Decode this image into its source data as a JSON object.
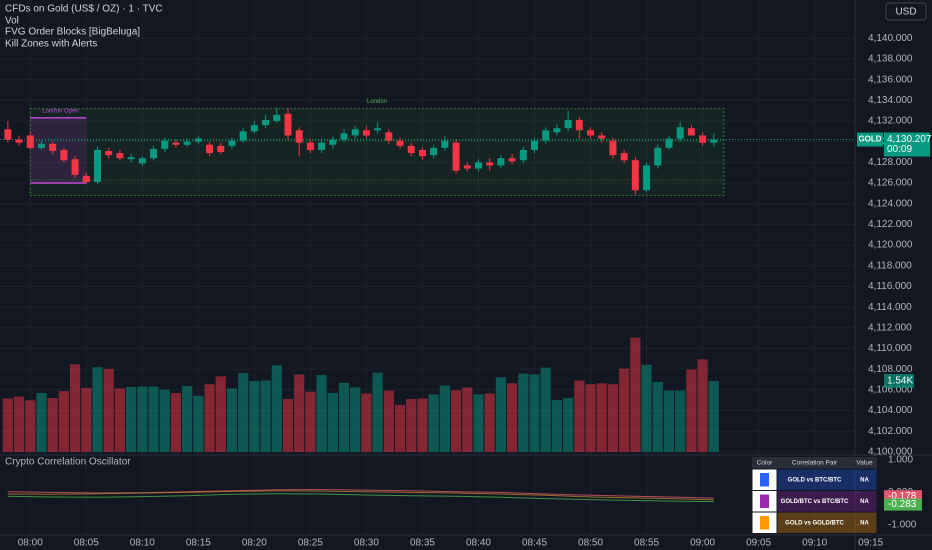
{
  "header": {
    "symbol": "CFDs on Gold (US$ / OZ) · 1 · TVC",
    "indicators": [
      "Vol",
      "FVG Order Blocks [BigBeluga]",
      "Kill Zones with Alerts"
    ],
    "currency": "USD"
  },
  "chart_data": [
    {
      "type": "candlestick",
      "open": [
        4131.2,
        4130.2,
        4130.6,
        4129.4,
        4129.8,
        4129.2,
        4128.3,
        4126.7,
        4126.1,
        4129.1,
        4128.9,
        4128.3,
        4127.9,
        4128.4,
        4129.3,
        4129.9,
        4129.7,
        4130.0,
        4129.7,
        4129.6,
        4129.6,
        4130.1,
        4131.0,
        4131.6,
        4132.0,
        4132.7,
        4131.1,
        4129.9,
        4129.2,
        4129.7,
        4130.2,
        4130.6,
        4131.1,
        4131.1,
        4130.9,
        4130.1,
        4129.6,
        4129.2,
        4128.7,
        4129.4,
        4129.9,
        4127.7,
        4127.4,
        4128.0,
        4127.7,
        4128.4,
        4128.2,
        4129.2,
        4130.1,
        4130.9,
        4131.3,
        4132.1,
        4131.1,
        4130.6,
        4130.1,
        4128.9,
        4128.2,
        4125.3,
        4127.7,
        4129.4,
        4130.3,
        4131.3,
        4130.6,
        4129.9
      ],
      "high": [
        4132.0,
        4130.6,
        4131.0,
        4130.1,
        4130.0,
        4129.4,
        4128.6,
        4127.0,
        4129.5,
        4129.4,
        4129.2,
        4128.8,
        4128.6,
        4129.6,
        4130.4,
        4130.2,
        4130.3,
        4130.6,
        4130.0,
        4129.9,
        4130.4,
        4131.3,
        4132.0,
        4132.6,
        4133.3,
        4133.2,
        4131.4,
        4130.2,
        4130.3,
        4130.5,
        4131.2,
        4131.5,
        4131.5,
        4131.9,
        4131.2,
        4130.4,
        4129.9,
        4129.5,
        4129.7,
        4130.6,
        4130.2,
        4128.0,
        4128.3,
        4128.4,
        4128.7,
        4128.8,
        4129.5,
        4130.4,
        4131.4,
        4131.7,
        4133.0,
        4132.4,
        4131.4,
        4130.9,
        4130.4,
        4129.2,
        4128.5,
        4128.0,
        4129.7,
        4130.6,
        4131.9,
        4131.6,
        4130.9,
        4130.8
      ],
      "low": [
        4129.9,
        4129.6,
        4129.2,
        4129.2,
        4128.8,
        4128.0,
        4126.5,
        4125.9,
        4125.9,
        4128.4,
        4128.2,
        4128.0,
        4127.6,
        4128.2,
        4129.0,
        4129.4,
        4129.5,
        4129.8,
        4128.6,
        4128.8,
        4129.3,
        4129.9,
        4130.8,
        4131.3,
        4131.8,
        4130.2,
        4128.6,
        4128.9,
        4128.9,
        4129.3,
        4130.0,
        4130.3,
        4130.3,
        4130.8,
        4129.8,
        4129.3,
        4128.6,
        4128.3,
        4128.4,
        4129.1,
        4126.9,
        4127.1,
        4127.1,
        4127.2,
        4127.4,
        4127.8,
        4127.9,
        4128.9,
        4129.8,
        4130.6,
        4131.0,
        4130.3,
        4130.3,
        4129.9,
        4128.4,
        4127.9,
        4124.9,
        4125.1,
        4127.4,
        4129.2,
        4130.0,
        4131.0,
        4129.6,
        4129.5
      ],
      "close": [
        4130.2,
        4129.9,
        4129.4,
        4129.8,
        4129.1,
        4128.2,
        4126.8,
        4126.1,
        4129.2,
        4128.7,
        4128.4,
        4128.5,
        4128.4,
        4129.3,
        4130.1,
        4129.7,
        4130.0,
        4130.3,
        4128.9,
        4129.0,
        4130.1,
        4131.0,
        4131.6,
        4132.1,
        4132.6,
        4130.6,
        4129.9,
        4129.2,
        4129.9,
        4130.2,
        4130.8,
        4131.2,
        4130.6,
        4131.3,
        4130.1,
        4129.6,
        4128.9,
        4128.6,
        4129.4,
        4130.1,
        4127.2,
        4127.4,
        4128.0,
        4127.7,
        4128.4,
        4128.1,
        4129.2,
        4130.1,
        4131.1,
        4131.3,
        4132.1,
        4131.1,
        4130.6,
        4130.3,
        4128.7,
        4128.2,
        4125.3,
        4127.7,
        4129.4,
        4130.3,
        4131.4,
        4130.6,
        4129.9,
        4130.2
      ],
      "up_color": "#089981",
      "down_color": "#f23645",
      "volume": [
        1160,
        1200,
        1120,
        1280,
        1170,
        1320,
        1900,
        1390,
        1840,
        1800,
        1380,
        1410,
        1420,
        1420,
        1350,
        1280,
        1430,
        1220,
        1470,
        1640,
        1380,
        1710,
        1540,
        1550,
        1880,
        1150,
        1680,
        1310,
        1670,
        1280,
        1500,
        1400,
        1270,
        1720,
        1330,
        1020,
        1150,
        1160,
        1250,
        1440,
        1340,
        1400,
        1250,
        1270,
        1620,
        1490,
        1700,
        1680,
        1830,
        1130,
        1170,
        1550,
        1470,
        1490,
        1470,
        1810,
        2480,
        1890,
        1520,
        1330,
        1330,
        1790,
        2010,
        1540
      ],
      "volume_last_label": "1.54K",
      "volume_ylim": [
        0,
        7200
      ],
      "xlim": [
        -0.7,
        75.6
      ],
      "xticks": [
        {
          "value": 2,
          "label": "08:00"
        },
        {
          "value": 7,
          "label": "08:05"
        },
        {
          "value": 12,
          "label": "08:10"
        },
        {
          "value": 17,
          "label": "08:15"
        },
        {
          "value": 22,
          "label": "08:20"
        },
        {
          "value": 27,
          "label": "08:25"
        },
        {
          "value": 32,
          "label": "08:30"
        },
        {
          "value": 37,
          "label": "08:35"
        },
        {
          "value": 42,
          "label": "08:40"
        },
        {
          "value": 47,
          "label": "08:45"
        },
        {
          "value": 52,
          "label": "08:50"
        },
        {
          "value": 57,
          "label": "08:55"
        },
        {
          "value": 62,
          "label": "09:00"
        },
        {
          "value": 67,
          "label": "09:05"
        },
        {
          "value": 72,
          "label": "09:10"
        },
        {
          "value": 77,
          "label": "09:15"
        }
      ],
      "ylim": [
        4099.7,
        4143.7
      ],
      "yticks": [
        {
          "value": 4100,
          "label": "4,100.000"
        },
        {
          "value": 4102,
          "label": "4,102.000"
        },
        {
          "value": 4104,
          "label": "4,104.000"
        },
        {
          "value": 4106,
          "label": "4,106.000"
        },
        {
          "value": 4108,
          "label": "4,108.000"
        },
        {
          "value": 4110,
          "label": "4,110.000"
        },
        {
          "value": 4112,
          "label": "4,112.000"
        },
        {
          "value": 4114,
          "label": "4,114.000"
        },
        {
          "value": 4116,
          "label": "4,116.000"
        },
        {
          "value": 4118,
          "label": "4,118.000"
        },
        {
          "value": 4120,
          "label": "4,120.000"
        },
        {
          "value": 4122,
          "label": "4,122.000"
        },
        {
          "value": 4124,
          "label": "4,124.000"
        },
        {
          "value": 4126,
          "label": "4,126.000"
        },
        {
          "value": 4128,
          "label": "4,128.000"
        },
        {
          "value": 4130,
          "label": "4,130.000"
        },
        {
          "value": 4132,
          "label": "4,132.000"
        },
        {
          "value": 4134,
          "label": "4,134.000"
        },
        {
          "value": 4136,
          "label": "4,136.000"
        },
        {
          "value": 4138,
          "label": "4,138.000"
        },
        {
          "value": 4140,
          "label": "4,140.000"
        }
      ],
      "grid": true,
      "last_price": {
        "value": 4130.207,
        "label": "4,130.207"
      },
      "symbol_label": "GOLD",
      "countdown": "00:09",
      "zones": [
        {
          "label": "London",
          "start": 2,
          "end": 63.9,
          "top": 4133.2,
          "bottom": 4124.8,
          "color": "#2e7d32"
        },
        {
          "label": "London Open",
          "start": 2,
          "end": 7,
          "top": 4132.3,
          "bottom": 4126.0,
          "color": "#9c27b0"
        }
      ],
      "levels": [
        4130.1,
        4126.3
      ]
    },
    {
      "type": "line",
      "title": "Crypto Correlation Oscillator",
      "x": [
        0,
        4,
        8,
        12,
        16,
        20,
        24,
        28,
        32,
        36,
        40,
        44,
        48,
        52,
        56,
        60,
        63
      ],
      "series": [
        {
          "color": "#e0566a",
          "last_label": true,
          "values": [
            0.02,
            0.0,
            -0.02,
            -0.01,
            0.02,
            0.05,
            0.08,
            0.09,
            0.07,
            0.05,
            0.02,
            0.0,
            -0.05,
            -0.09,
            -0.12,
            -0.15,
            -0.178
          ]
        },
        {
          "color": "#4caf50",
          "last_label": true,
          "values": [
            -0.12,
            -0.14,
            -0.15,
            -0.13,
            -0.1,
            -0.06,
            -0.04,
            -0.05,
            -0.08,
            -0.1,
            -0.12,
            -0.15,
            -0.19,
            -0.22,
            -0.25,
            -0.27,
            -0.283
          ]
        },
        {
          "color": "#b8862b",
          "last_label": false,
          "values": [
            -0.05,
            -0.06,
            -0.04,
            -0.02,
            0.0,
            0.03,
            0.05,
            0.04,
            0.02,
            0.0,
            -0.02,
            -0.05,
            -0.09,
            -0.14,
            -0.17,
            -0.2,
            -0.23
          ]
        }
      ],
      "ylim": [
        -1.31,
        1.15
      ],
      "yticks": [
        {
          "value": 1,
          "label": "1.000"
        },
        {
          "value": 0,
          "label": "0.000"
        },
        {
          "value": -1,
          "label": "-1.000"
        }
      ],
      "table": {
        "headers": [
          "Color",
          "Correlation Pair",
          "Value"
        ],
        "rows": [
          {
            "color": "#2962ff",
            "pair": "GOLD vs BTC/BTC",
            "value": "NA"
          },
          {
            "color": "#9c27b0",
            "pair": "GOLD/BTC vs BTC/BTC",
            "value": "NA"
          },
          {
            "color": "#ff9800",
            "pair": "GOLD vs GOLD/BTC",
            "value": "NA"
          }
        ]
      }
    }
  ]
}
